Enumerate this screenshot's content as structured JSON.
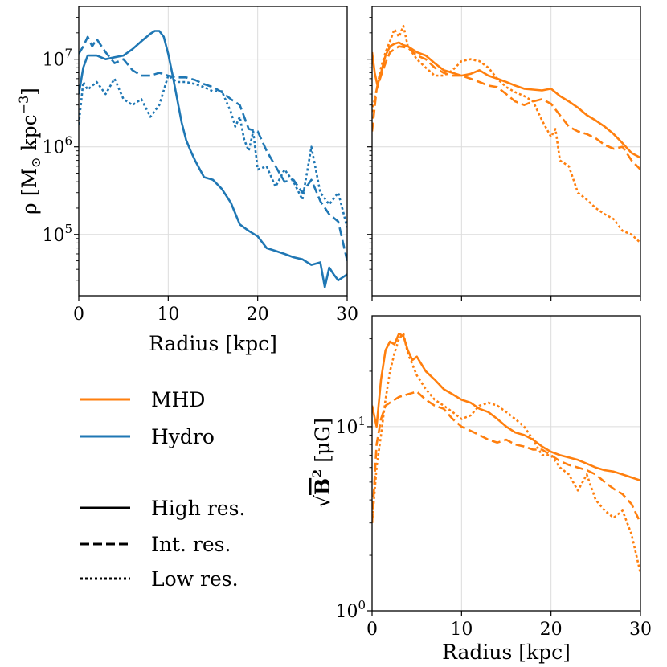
{
  "colors": {
    "mhd": "#ff7f0e",
    "hydro": "#1f77b4"
  },
  "legend": {
    "physics": [
      {
        "label": "MHD",
        "color": "#ff7f0e"
      },
      {
        "label": "Hydro",
        "color": "#1f77b4"
      }
    ],
    "resolution": [
      {
        "label": "High res.",
        "style": "solid"
      },
      {
        "label": "Int. res.",
        "style": "dashed"
      },
      {
        "label": "Low res.",
        "style": "dotted"
      }
    ]
  },
  "chart_data": [
    {
      "id": "hydro_density",
      "type": "line",
      "xlabel": "Radius [kpc]",
      "ylabel": "ρ [M☉ kpc⁻³]",
      "ylabel_parts": {
        "main": "ρ [M",
        "sub": "⊙",
        "mid": " kpc",
        "sup": "−3",
        "end": "]"
      },
      "yscale": "log",
      "xlim": [
        0,
        30
      ],
      "ylim": [
        20000,
        40000000
      ],
      "xticks": [
        "0",
        "10",
        "20",
        "30"
      ],
      "yticks": [
        {
          "value": 100000,
          "exp": "5"
        },
        {
          "value": 1000000,
          "exp": "6"
        },
        {
          "value": 10000000,
          "exp": "7"
        }
      ],
      "series": [
        {
          "name": "Hydro High res.",
          "style": "solid",
          "x": [
            0,
            0.5,
            1,
            2,
            3,
            4,
            5,
            6,
            7,
            8,
            8.5,
            9,
            9.5,
            10,
            10.5,
            11,
            11.5,
            12,
            12.5,
            13,
            14,
            15,
            16,
            17,
            18,
            19,
            20,
            21,
            22,
            23,
            24,
            25,
            26,
            27,
            27.5,
            28,
            28.5,
            29,
            30
          ],
          "y": [
            4000000,
            8000000,
            11000000,
            11000000,
            10000000,
            10500000,
            11000000,
            13000000,
            16000000,
            19500000,
            21000000,
            21000000,
            18000000,
            11500000,
            6500000,
            3500000,
            1900000,
            1200000,
            900000,
            700000,
            450000,
            420000,
            330000,
            230000,
            130000,
            110000,
            95000,
            70000,
            65000,
            60000,
            55000,
            52000,
            45000,
            48000,
            25000,
            42000,
            35000,
            30000,
            35000
          ]
        },
        {
          "name": "Hydro Int. res.",
          "style": "dashed",
          "x": [
            0,
            0.5,
            1,
            1.5,
            2,
            3,
            4,
            5,
            6,
            7,
            8,
            9,
            10,
            11,
            12,
            13,
            14,
            15,
            16,
            17,
            18,
            19,
            20,
            21,
            22,
            23,
            24,
            25,
            26,
            27,
            28,
            29,
            30
          ],
          "y": [
            11500000,
            14000000,
            18000000,
            14000000,
            17000000,
            12000000,
            9000000,
            10000000,
            7500000,
            6500000,
            6500000,
            7000000,
            6500000,
            6200000,
            6200000,
            5800000,
            5200000,
            4800000,
            4200000,
            3500000,
            3000000,
            1600000,
            1500000,
            900000,
            600000,
            400000,
            420000,
            300000,
            420000,
            240000,
            170000,
            140000,
            50000
          ]
        },
        {
          "name": "Hydro Low res.",
          "style": "dotted",
          "x": [
            0,
            0.5,
            1,
            2,
            3,
            4,
            5,
            6,
            7,
            8,
            9,
            10,
            11,
            12,
            13,
            14,
            15,
            16,
            17,
            17.5,
            18,
            18.5,
            19,
            19.5,
            20,
            21,
            22,
            23,
            24,
            25,
            26,
            27,
            28,
            29,
            30
          ],
          "y": [
            1800000,
            5500000,
            4500000,
            5500000,
            4000000,
            6000000,
            3500000,
            3000000,
            3500000,
            2200000,
            3000000,
            6500000,
            5500000,
            5500000,
            5200000,
            4800000,
            4300000,
            4300000,
            2500000,
            1700000,
            2200000,
            1200000,
            900000,
            1500000,
            550000,
            600000,
            350000,
            550000,
            400000,
            250000,
            1000000,
            300000,
            220000,
            300000,
            120000
          ]
        }
      ]
    },
    {
      "id": "mhd_density",
      "type": "line",
      "xlabel": "",
      "ylabel": "",
      "yscale": "log",
      "xlim": [
        0,
        30
      ],
      "ylim": [
        20000,
        40000000
      ],
      "series": [
        {
          "name": "MHD High res.",
          "style": "solid",
          "x": [
            0,
            0.3,
            0.6,
            1,
            1.5,
            2,
            2.5,
            3,
            3.5,
            4,
            5,
            6,
            7,
            8,
            9,
            10,
            11,
            12,
            13,
            14,
            15,
            16,
            17,
            18,
            19,
            20,
            21,
            22,
            23,
            24,
            25,
            26,
            27,
            28,
            29,
            30
          ],
          "y": [
            12000000,
            7000000,
            5000000,
            7000000,
            11000000,
            14000000,
            15000000,
            15500000,
            14500000,
            14000000,
            12000000,
            11000000,
            9000000,
            7500000,
            7000000,
            6500000,
            6800000,
            7500000,
            6500000,
            6000000,
            5500000,
            5000000,
            4600000,
            4500000,
            4400000,
            4600000,
            3800000,
            3300000,
            2800000,
            2300000,
            2000000,
            1700000,
            1400000,
            1100000,
            850000,
            750000
          ]
        },
        {
          "name": "MHD Int. res.",
          "style": "dashed",
          "x": [
            0,
            0.5,
            1,
            1.5,
            2,
            3,
            4,
            5,
            6,
            7,
            8,
            9,
            10,
            11,
            12,
            13,
            14,
            15,
            16,
            17,
            18,
            19,
            20,
            21,
            22,
            23,
            24,
            25,
            26,
            27,
            28,
            29,
            30
          ],
          "y": [
            1500000,
            4500000,
            6500000,
            9000000,
            12000000,
            14000000,
            13500000,
            11000000,
            10000000,
            8000000,
            7000000,
            6500000,
            6500000,
            6000000,
            5500000,
            5000000,
            4800000,
            4000000,
            3300000,
            3000000,
            3300000,
            3500000,
            3100000,
            2300000,
            1700000,
            1500000,
            1400000,
            1250000,
            1050000,
            950000,
            1000000,
            700000,
            550000
          ]
        },
        {
          "name": "MHD Low res.",
          "style": "dotted",
          "x": [
            0,
            0.5,
            1,
            1.5,
            2,
            2.5,
            3,
            3.5,
            4,
            5,
            6,
            7,
            8,
            9,
            10,
            11,
            12,
            13,
            14,
            15,
            16,
            17,
            18,
            19,
            20,
            20.5,
            21,
            22,
            23,
            24,
            25,
            26,
            27,
            28,
            29,
            30
          ],
          "y": [
            2500000,
            4500000,
            8000000,
            12000000,
            16000000,
            22000000,
            18000000,
            24000000,
            14000000,
            10000000,
            8000000,
            6500000,
            6500000,
            7500000,
            9500000,
            10000000,
            9500000,
            8000000,
            6000000,
            4800000,
            4200000,
            3800000,
            3300000,
            2000000,
            1300000,
            1600000,
            700000,
            600000,
            300000,
            250000,
            200000,
            170000,
            150000,
            110000,
            100000,
            80000
          ]
        }
      ]
    },
    {
      "id": "mhd_bfield",
      "type": "line",
      "xlabel": "Radius [kpc]",
      "ylabel": "√B² [μG]",
      "ylabel_parts": {
        "root": "√",
        "main": "B",
        "sup": "2",
        "end": " [μG]"
      },
      "yscale": "log",
      "xlim": [
        0,
        30
      ],
      "ylim": [
        1,
        40
      ],
      "xticks": [
        "0",
        "10",
        "20",
        "30"
      ],
      "yticks": [
        {
          "value": 1,
          "exp": "0"
        },
        {
          "value": 10,
          "exp": "1"
        }
      ],
      "series": [
        {
          "name": "MHD High res.",
          "style": "solid",
          "x": [
            0,
            0.5,
            1,
            1.5,
            2,
            2.5,
            3,
            3.5,
            4,
            4.5,
            5,
            6,
            7,
            8,
            9,
            10,
            11,
            12,
            13,
            14,
            15,
            16,
            17,
            18,
            19,
            20,
            21,
            22,
            23,
            24,
            25,
            26,
            27,
            28,
            29,
            30
          ],
          "y": [
            13,
            10,
            18,
            26,
            29,
            28,
            32,
            31,
            26,
            23,
            24,
            20,
            18,
            16,
            15,
            14,
            13.5,
            12.5,
            12,
            11,
            10,
            9.3,
            9,
            8.5,
            7.8,
            7.3,
            7,
            6.8,
            6.6,
            6.3,
            6,
            5.8,
            5.7,
            5.5,
            5.3,
            5.1
          ]
        },
        {
          "name": "MHD Int. res.",
          "style": "dashed",
          "x": [
            0,
            0.5,
            1,
            1.5,
            2,
            3,
            4,
            5,
            6,
            7,
            8,
            9,
            10,
            11,
            12,
            13,
            14,
            15,
            16,
            17,
            18,
            19,
            20,
            21,
            22,
            23,
            24,
            25,
            26,
            27,
            28,
            29,
            30
          ],
          "y": [
            3,
            8,
            11,
            13,
            13.5,
            14.5,
            15,
            15.5,
            14,
            13,
            12.5,
            11,
            10,
            9.5,
            9,
            8.5,
            8.2,
            8.5,
            8,
            7.8,
            7.5,
            7.5,
            7,
            6.5,
            6.2,
            6,
            5.8,
            5.5,
            5,
            4.6,
            4.3,
            3.8,
            3
          ]
        },
        {
          "name": "MHD Low res.",
          "style": "dotted",
          "x": [
            0,
            0.5,
            1,
            1.5,
            2,
            2.5,
            3,
            3.5,
            4,
            5,
            6,
            7,
            8,
            9,
            10,
            11,
            12,
            13,
            14,
            15,
            16,
            17,
            18,
            19,
            20,
            21,
            22,
            23,
            24,
            25,
            26,
            27,
            28,
            29,
            30
          ],
          "y": [
            3,
            6,
            9,
            14,
            20,
            25,
            30,
            32,
            25,
            19,
            16,
            14,
            13,
            12,
            11,
            11.5,
            13,
            13.5,
            13,
            12,
            11,
            10,
            8.5,
            7,
            7,
            6,
            5.5,
            4.5,
            5.5,
            4,
            3.5,
            3.2,
            3.5,
            2.6,
            1.6
          ]
        }
      ]
    }
  ]
}
